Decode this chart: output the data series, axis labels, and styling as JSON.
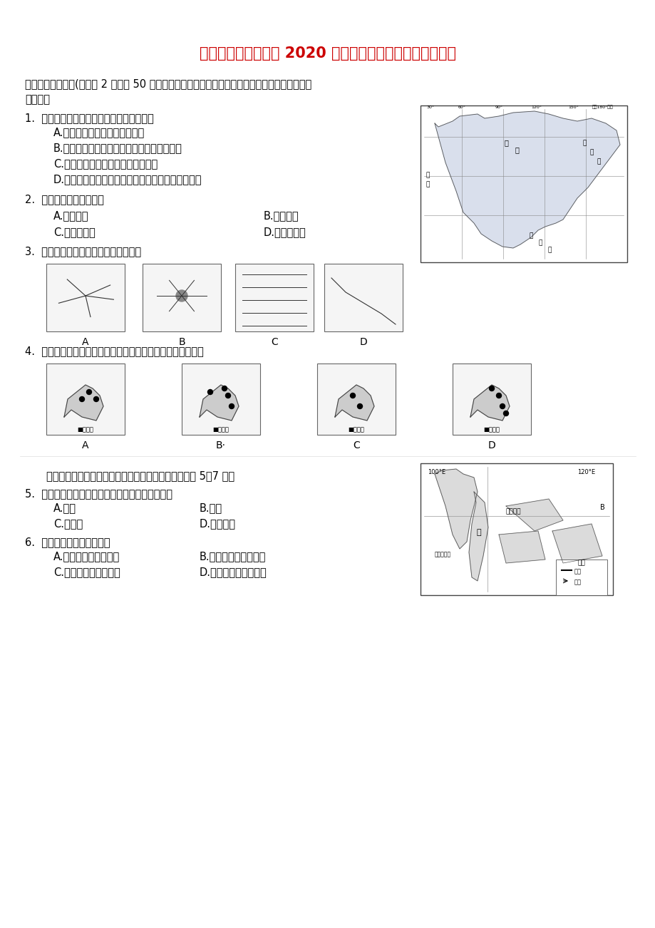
{
  "title": "山东省济南市历城区 2020 学年七年级地理下学期期末试题",
  "title_color": "#CC0000",
  "bg_color": "#FFFFFF",
  "text_color": "#000000",
  "font_size_title": 15,
  "font_size_body": 11,
  "section1_header": "一、单项选择题。(每小题 2 分，共 50 分。四个选项中，只有一项符合题目要求，多选、错选均不",
  "section1_header2": "得分。）",
  "q1": "1.  读右图，有关亚洲地理位置说法正确的是",
  "q1a": "A.亚洲全部位于东半球、北半球",
  "q1b": "B.亚洲东临太平洋，北临北冰洋，南临印度洋",
  "q1c": "C.亚洲地跨北温带和热带，没有寒带",
  "q1d": "D.亚洲西面和西南面分别相邻的大洲是欧洲和大洋洲",
  "q2": "2.  亚洲和欧洲的分界线是",
  "q2a": "A.乌拉尔山",
  "q2b": "B.白令海峡",
  "q2c": "C.巴拿马运河",
  "q2d": "D.苏伊士运河",
  "q3": "3.  下列图片能反应出亚洲水系特点的是",
  "q3_labels": [
    "A",
    "B",
    "C",
    "D"
  ],
  "q4": "4.  日本工业与世界联系密切，能够反映日本工业分布特点的是",
  "q4_labels": [
    "A",
    "B·",
    "C",
    "D"
  ],
  "passage": "家住济南的小华，暑假想去东南亚游玩。读右图，完成 5～7 题。",
  "q5": "5.  小华想准备需要携带的东西，其中最不需要的是",
  "q5a": "A.雨伞",
  "q5b": "B.地图",
  "q5c": "C.摄像机",
  "q5d": "D.防寒衣物",
  "q6": "6.  图中甲半岛的山河大势是",
  "q6a": "A.平原为主，地势平坦",
  "q6b": "B.高原为主，地面崎岖",
  "q6c": "C.山河相间，纵列分布",
  "q6d": "D.地形复杂，中高周低"
}
